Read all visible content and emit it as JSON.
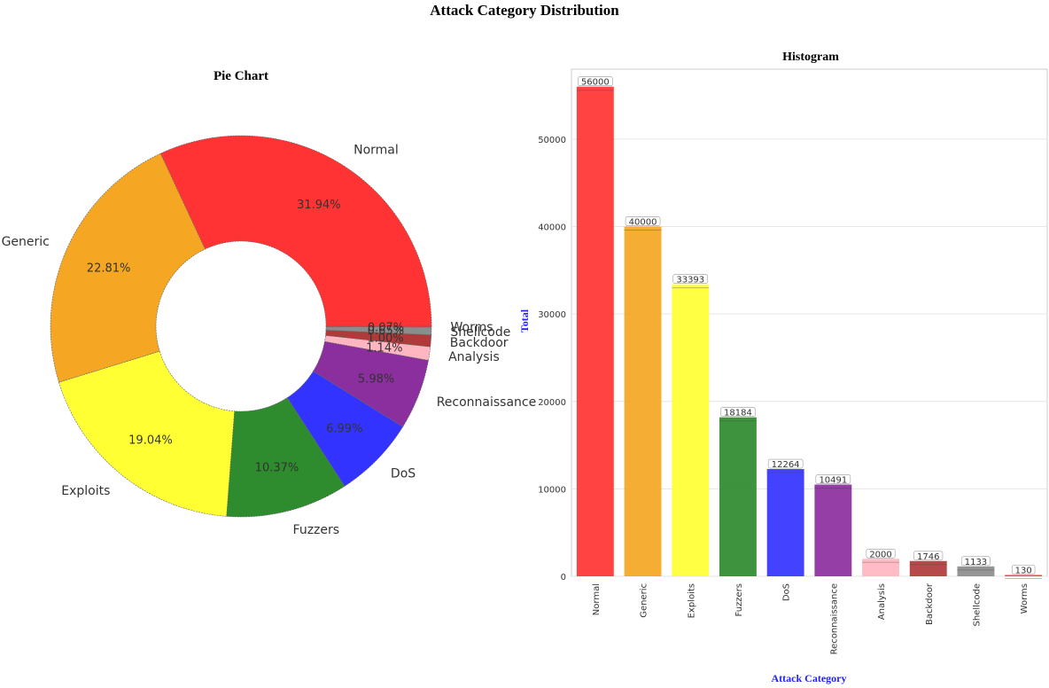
{
  "title": "Attack Category Distribution",
  "colors": {
    "Normal": "#ff3333",
    "Generic": "#f5a623",
    "Exploits": "#ffff33",
    "Fuzzers": "#2e8b2e",
    "DoS": "#3333ff",
    "Reconnaissance": "#8b2e9e",
    "Analysis": "#ffb6c1",
    "Backdoor": "#b03a3a",
    "Shellcode": "#8c8c8c",
    "Worms": "#ff3333",
    "axis_label": "#2222ff"
  },
  "chart_data": [
    {
      "type": "pie",
      "variant": "donut",
      "title": "Pie Chart",
      "labels": [
        "Normal",
        "Generic",
        "Exploits",
        "Fuzzers",
        "DoS",
        "Reconnaissance",
        "Analysis",
        "Backdoor",
        "Shellcode",
        "Worms"
      ],
      "values": [
        56000,
        40000,
        33393,
        18184,
        12264,
        10491,
        2000,
        1746,
        1133,
        130
      ],
      "percent_labels": [
        "31.94%",
        "22.81%",
        "19.04%",
        "10.37%",
        "6.99%",
        "5.98%",
        "1.14%",
        "1.00%",
        "0.65%",
        "0.07%"
      ]
    },
    {
      "type": "bar",
      "title": "Histogram",
      "xlabel": "Attack Category",
      "ylabel": "Total",
      "categories": [
        "Normal",
        "Generic",
        "Exploits",
        "Fuzzers",
        "DoS",
        "Reconnaissance",
        "Analysis",
        "Backdoor",
        "Shellcode",
        "Worms"
      ],
      "values": [
        56000,
        40000,
        33393,
        18184,
        12264,
        10491,
        2000,
        1746,
        1133,
        130
      ],
      "data_labels": [
        "56000",
        "40000",
        "33393",
        "18184",
        "12264",
        "10491",
        "2000",
        "1746",
        "1133",
        "130"
      ],
      "yticks": [
        0,
        10000,
        20000,
        30000,
        40000,
        50000
      ],
      "ylim": [
        0,
        58000
      ],
      "grid": true
    }
  ]
}
